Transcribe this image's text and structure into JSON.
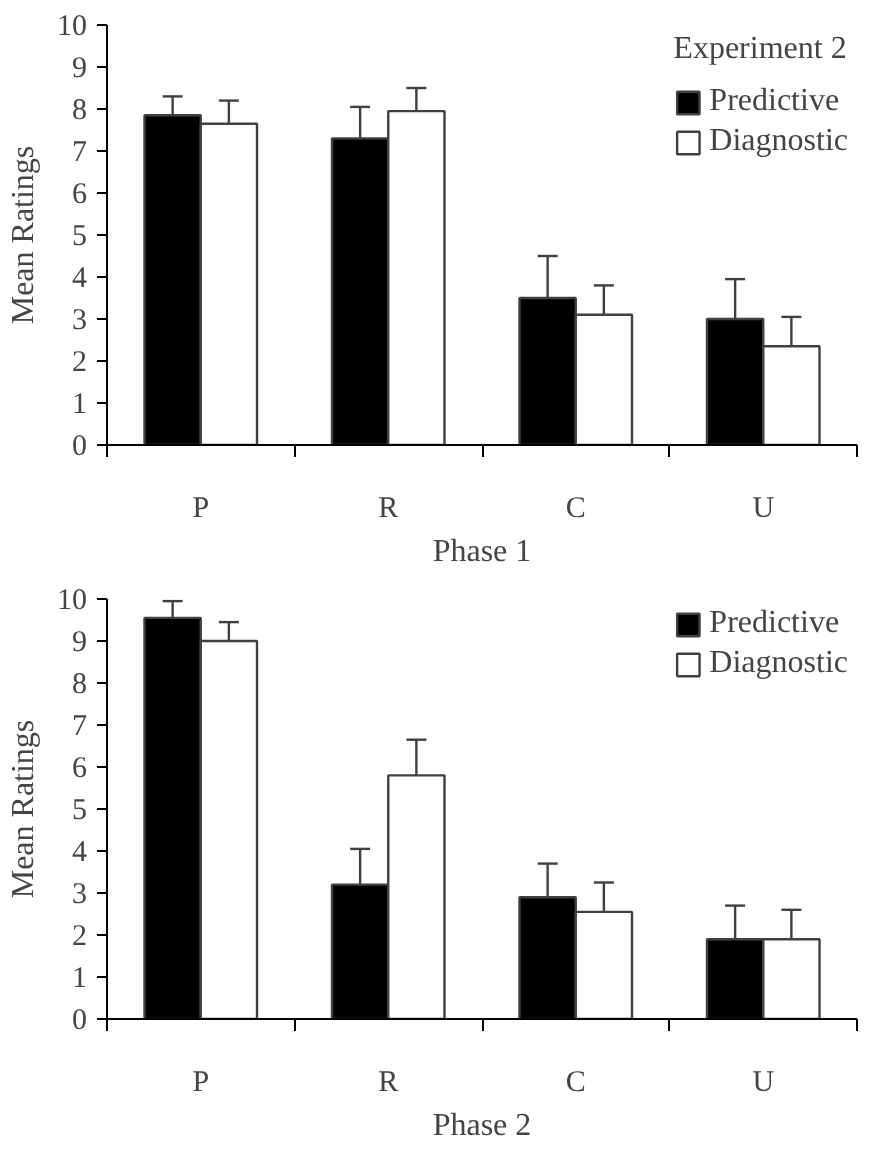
{
  "chart_data": [
    {
      "type": "bar",
      "xlabel": "Phase 1",
      "ylabel": "Mean Ratings",
      "legend_title": "Experiment 2",
      "legend": "top right",
      "grid": false,
      "categories": [
        "P",
        "R",
        "C",
        "U"
      ],
      "ylim": [
        0,
        10
      ],
      "yticks": [
        0,
        1,
        2,
        3,
        4,
        5,
        6,
        7,
        8,
        9,
        10
      ],
      "series": [
        {
          "name": "Predictive",
          "color": "#000000",
          "values": [
            7.85,
            7.3,
            3.5,
            3.0
          ],
          "errors": [
            [
              7.85,
              8.3
            ],
            [
              7.3,
              8.05
            ],
            [
              3.5,
              4.5
            ],
            [
              3.0,
              3.95
            ]
          ]
        },
        {
          "name": "Diagnostic",
          "color": "#ffffff",
          "values": [
            7.65,
            7.95,
            3.1,
            2.35
          ],
          "errors": [
            [
              7.65,
              8.2
            ],
            [
              7.95,
              8.5
            ],
            [
              3.1,
              3.8
            ],
            [
              2.35,
              3.05
            ]
          ]
        }
      ]
    },
    {
      "type": "bar",
      "xlabel": "Phase 2",
      "ylabel": "Mean Ratings",
      "legend": "top right",
      "grid": false,
      "categories": [
        "P",
        "R",
        "C",
        "U"
      ],
      "ylim": [
        0,
        10
      ],
      "yticks": [
        0,
        1,
        2,
        3,
        4,
        5,
        6,
        7,
        8,
        9,
        10
      ],
      "series": [
        {
          "name": "Predictive",
          "color": "#000000",
          "values": [
            9.55,
            3.2,
            2.9,
            1.9
          ],
          "errors": [
            [
              9.55,
              9.95
            ],
            [
              3.2,
              4.05
            ],
            [
              2.9,
              3.7
            ],
            [
              1.9,
              2.7
            ]
          ]
        },
        {
          "name": "Diagnostic",
          "color": "#ffffff",
          "values": [
            9.0,
            5.8,
            2.55,
            1.9
          ],
          "errors": [
            [
              9.0,
              9.45
            ],
            [
              5.8,
              6.65
            ],
            [
              2.55,
              3.25
            ],
            [
              1.9,
              2.6
            ]
          ]
        }
      ]
    }
  ]
}
